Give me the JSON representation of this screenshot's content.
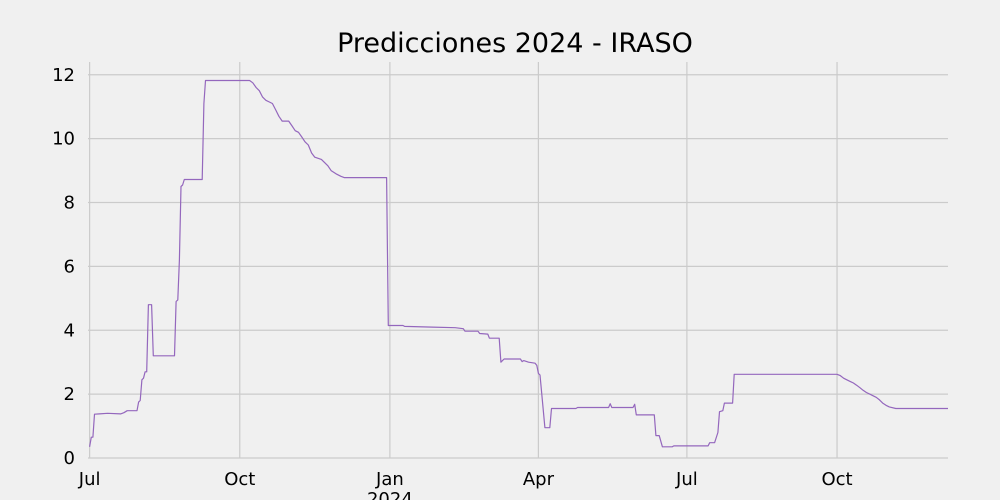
{
  "chart_data": {
    "type": "line",
    "title": "Predicciones 2024 - IRASO",
    "xlabel": "",
    "ylabel": "",
    "xlim": [
      "2023-06-30",
      "2024-12-08"
    ],
    "ylim": [
      0,
      12.4
    ],
    "grid": true,
    "legend": "none",
    "x_ticks": [
      {
        "date": "2023-07-01",
        "label": "Jul",
        "sublabel": ""
      },
      {
        "date": "2023-10-01",
        "label": "Oct",
        "sublabel": ""
      },
      {
        "date": "2024-01-01",
        "label": "Jan",
        "sublabel": "2024"
      },
      {
        "date": "2024-04-01",
        "label": "Apr",
        "sublabel": ""
      },
      {
        "date": "2024-07-01",
        "label": "Jul",
        "sublabel": ""
      },
      {
        "date": "2024-10-01",
        "label": "Oct",
        "sublabel": ""
      }
    ],
    "y_ticks": [
      0,
      2,
      4,
      6,
      8,
      10,
      12
    ],
    "series": [
      {
        "name": "",
        "color": "#9467bd",
        "points": [
          [
            "2023-07-01",
            0.35
          ],
          [
            "2023-07-02",
            0.65
          ],
          [
            "2023-07-03",
            0.65
          ],
          [
            "2023-07-04",
            1.37
          ],
          [
            "2023-07-07",
            1.38
          ],
          [
            "2023-07-12",
            1.4
          ],
          [
            "2023-07-20",
            1.38
          ],
          [
            "2023-07-22",
            1.42
          ],
          [
            "2023-07-24",
            1.48
          ],
          [
            "2023-07-30",
            1.48
          ],
          [
            "2023-07-31",
            1.75
          ],
          [
            "2023-08-01",
            1.8
          ],
          [
            "2023-08-02",
            2.45
          ],
          [
            "2023-08-03",
            2.5
          ],
          [
            "2023-08-04",
            2.7
          ],
          [
            "2023-08-05",
            2.7
          ],
          [
            "2023-08-06",
            4.8
          ],
          [
            "2023-08-08",
            4.8
          ],
          [
            "2023-08-09",
            3.2
          ],
          [
            "2023-08-22",
            3.2
          ],
          [
            "2023-08-23",
            4.9
          ],
          [
            "2023-08-24",
            4.95
          ],
          [
            "2023-08-25",
            6.2
          ],
          [
            "2023-08-26",
            8.5
          ],
          [
            "2023-08-27",
            8.55
          ],
          [
            "2023-08-28",
            8.72
          ],
          [
            "2023-09-08",
            8.72
          ],
          [
            "2023-09-09",
            11.1
          ],
          [
            "2023-09-10",
            11.82
          ],
          [
            "2023-10-07",
            11.82
          ],
          [
            "2023-10-09",
            11.75
          ],
          [
            "2023-10-11",
            11.6
          ],
          [
            "2023-10-13",
            11.5
          ],
          [
            "2023-10-15",
            11.3
          ],
          [
            "2023-10-17",
            11.2
          ],
          [
            "2023-10-19",
            11.15
          ],
          [
            "2023-10-21",
            11.1
          ],
          [
            "2023-10-23",
            10.9
          ],
          [
            "2023-10-25",
            10.7
          ],
          [
            "2023-10-27",
            10.55
          ],
          [
            "2023-10-31",
            10.55
          ],
          [
            "2023-11-02",
            10.4
          ],
          [
            "2023-11-04",
            10.25
          ],
          [
            "2023-11-06",
            10.2
          ],
          [
            "2023-11-08",
            10.05
          ],
          [
            "2023-11-10",
            9.9
          ],
          [
            "2023-11-12",
            9.8
          ],
          [
            "2023-11-14",
            9.55
          ],
          [
            "2023-11-16",
            9.42
          ],
          [
            "2023-11-20",
            9.35
          ],
          [
            "2023-11-22",
            9.25
          ],
          [
            "2023-11-24",
            9.15
          ],
          [
            "2023-11-26",
            9.0
          ],
          [
            "2023-11-29",
            8.9
          ],
          [
            "2023-12-02",
            8.82
          ],
          [
            "2023-12-04",
            8.78
          ],
          [
            "2023-12-30",
            8.78
          ],
          [
            "2023-12-31",
            4.15
          ],
          [
            "2024-01-09",
            4.15
          ],
          [
            "2024-01-10",
            4.12
          ],
          [
            "2024-01-27",
            4.1
          ],
          [
            "2024-02-10",
            4.08
          ],
          [
            "2024-02-15",
            4.05
          ],
          [
            "2024-02-16",
            3.97
          ],
          [
            "2024-02-24",
            3.97
          ],
          [
            "2024-02-25",
            3.9
          ],
          [
            "2024-03-01",
            3.88
          ],
          [
            "2024-03-02",
            3.75
          ],
          [
            "2024-03-08",
            3.75
          ],
          [
            "2024-03-09",
            3.0
          ],
          [
            "2024-03-10",
            3.05
          ],
          [
            "2024-03-11",
            3.1
          ],
          [
            "2024-03-21",
            3.1
          ],
          [
            "2024-03-22",
            3.02
          ],
          [
            "2024-03-23",
            3.05
          ],
          [
            "2024-03-26",
            3.0
          ],
          [
            "2024-03-30",
            2.97
          ],
          [
            "2024-03-31",
            2.9
          ],
          [
            "2024-04-01",
            2.65
          ],
          [
            "2024-04-02",
            2.6
          ],
          [
            "2024-04-05",
            0.95
          ],
          [
            "2024-04-08",
            0.95
          ],
          [
            "2024-04-09",
            1.55
          ],
          [
            "2024-04-24",
            1.55
          ],
          [
            "2024-04-25",
            1.58
          ],
          [
            "2024-05-14",
            1.58
          ],
          [
            "2024-05-15",
            1.7
          ],
          [
            "2024-05-16",
            1.58
          ],
          [
            "2024-05-29",
            1.58
          ],
          [
            "2024-05-30",
            1.68
          ],
          [
            "2024-05-31",
            1.35
          ],
          [
            "2024-06-11",
            1.35
          ],
          [
            "2024-06-12",
            0.7
          ],
          [
            "2024-06-14",
            0.7
          ],
          [
            "2024-06-16",
            0.35
          ],
          [
            "2024-06-22",
            0.35
          ],
          [
            "2024-06-23",
            0.38
          ],
          [
            "2024-07-14",
            0.38
          ],
          [
            "2024-07-15",
            0.48
          ],
          [
            "2024-07-18",
            0.48
          ],
          [
            "2024-07-20",
            0.8
          ],
          [
            "2024-07-21",
            1.45
          ],
          [
            "2024-07-23",
            1.48
          ],
          [
            "2024-07-24",
            1.72
          ],
          [
            "2024-07-29",
            1.72
          ],
          [
            "2024-07-30",
            2.62
          ],
          [
            "2024-10-01",
            2.62
          ],
          [
            "2024-10-03",
            2.58
          ],
          [
            "2024-10-05",
            2.5
          ],
          [
            "2024-10-07",
            2.45
          ],
          [
            "2024-10-09",
            2.4
          ],
          [
            "2024-10-11",
            2.35
          ],
          [
            "2024-10-13",
            2.28
          ],
          [
            "2024-10-15",
            2.2
          ],
          [
            "2024-10-17",
            2.12
          ],
          [
            "2024-10-19",
            2.05
          ],
          [
            "2024-10-21",
            2.0
          ],
          [
            "2024-10-23",
            1.95
          ],
          [
            "2024-10-25",
            1.9
          ],
          [
            "2024-10-27",
            1.82
          ],
          [
            "2024-10-29",
            1.72
          ],
          [
            "2024-10-31",
            1.65
          ],
          [
            "2024-11-02",
            1.6
          ],
          [
            "2024-11-06",
            1.55
          ],
          [
            "2024-12-08",
            1.55
          ]
        ]
      }
    ]
  }
}
